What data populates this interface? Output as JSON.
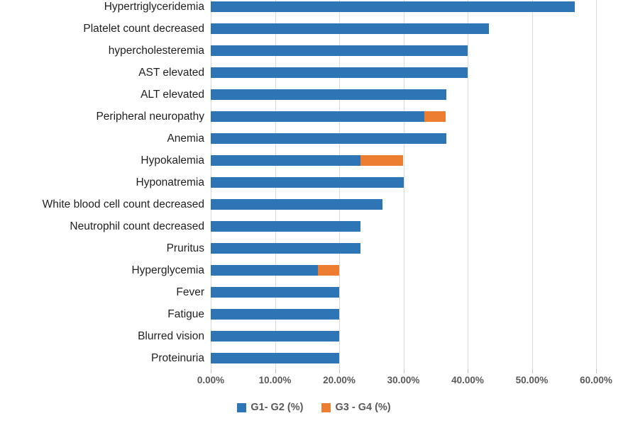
{
  "chart_data": {
    "type": "bar",
    "orientation": "horizontal",
    "stacked": true,
    "title": "",
    "xlabel": "",
    "ylabel": "",
    "categories": [
      "Hypertriglyceridemia",
      "Platelet count decreased",
      "hypercholesteremia",
      "AST elevated",
      "ALT elevated",
      "Peripheral neuropathy",
      "Anemia",
      "Hypokalemia",
      "Hyponatremia",
      "White blood cell count decreased",
      "Neutrophil count decreased",
      "Pruritus",
      "Hyperglycemia",
      "Fever",
      "Fatigue",
      "Blurred vision",
      "Proteinuria"
    ],
    "series": [
      {
        "name": "G1- G2 (%)",
        "color": "#2e75b6",
        "values": [
          56.7,
          43.3,
          40.0,
          40.0,
          36.7,
          33.3,
          36.7,
          23.3,
          30.0,
          26.7,
          23.3,
          23.3,
          16.7,
          20.0,
          20.0,
          20.0,
          20.0
        ]
      },
      {
        "name": "G3 - G4 (%)",
        "color": "#ed7d31",
        "values": [
          0,
          0,
          0,
          0,
          0,
          3.3,
          0,
          6.7,
          0,
          0,
          0,
          0,
          3.3,
          0,
          0,
          0,
          0
        ]
      }
    ],
    "x_ticks": [
      "0.00%",
      "10.00%",
      "20.00%",
      "30.00%",
      "40.00%",
      "50.00%",
      "60.00%"
    ],
    "xlim": [
      0,
      60
    ],
    "grid": true,
    "gridline_color": "#d9d9d9",
    "tick_color": "#bfbfbf",
    "legend_position": "bottom"
  },
  "legend": {
    "items": [
      {
        "label": "G1- G2 (%)",
        "color": "#2e75b6"
      },
      {
        "label": "G3 - G4 (%)",
        "color": "#ed7d31"
      }
    ]
  }
}
